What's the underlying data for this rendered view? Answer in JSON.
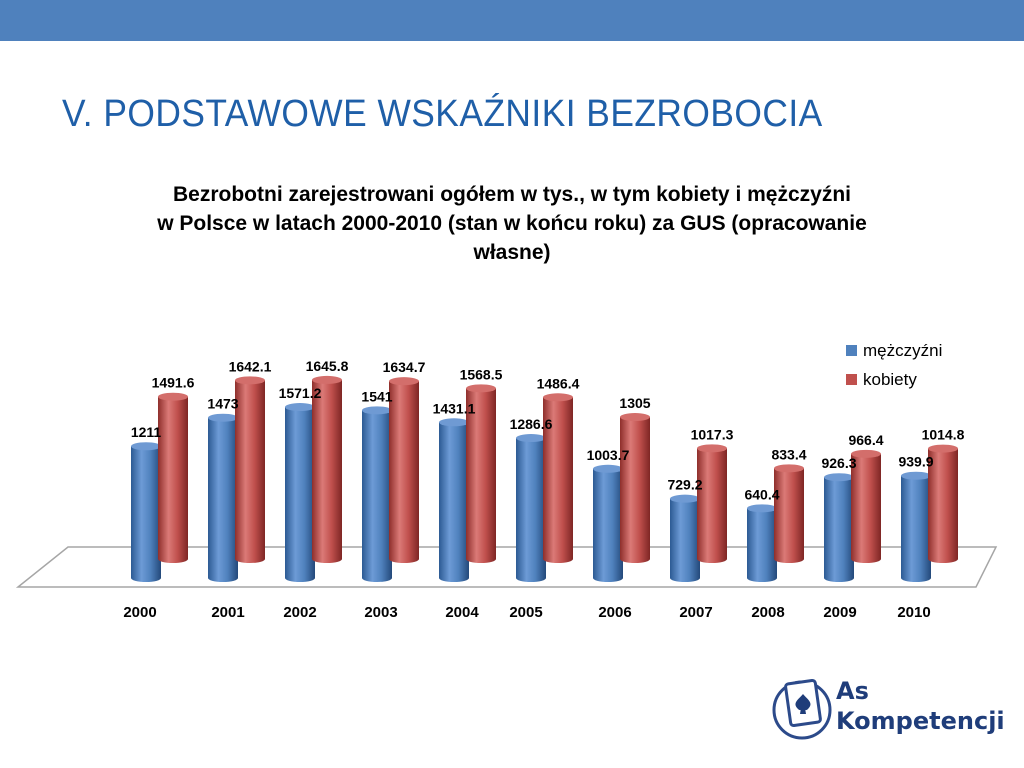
{
  "slide": {
    "title": "V. PODSTAWOWE WSKAŹNIKI BEZROBOCIA",
    "caption_lines": [
      "Bezrobotni zarejestrowani ogółem w tys., w tym kobiety i mężczyźni",
      "w Polsce w latach 2000-2010 (stan w końcu roku) za GUS (opracowanie",
      "własne)"
    ]
  },
  "colors": {
    "band": "#4f81bd",
    "title": "#1f5fa8",
    "men": "#4f81bd",
    "women": "#c0504d"
  },
  "chart_data": {
    "type": "bar",
    "style": "3d-cylinder",
    "categories": [
      "2000",
      "2001",
      "2002",
      "2003",
      "2004",
      "2005",
      "2006",
      "2007",
      "2008",
      "2009",
      "2010"
    ],
    "series": [
      {
        "name": "mężczyźni",
        "color": "#4f81bd",
        "values": [
          1211,
          1473,
          1571.2,
          1541,
          1431.1,
          1286.6,
          1003.7,
          729.2,
          640.4,
          926.3,
          939.9
        ]
      },
      {
        "name": "kobiety",
        "color": "#c0504d",
        "values": [
          1491.6,
          1642.1,
          1645.8,
          1634.7,
          1568.5,
          1486.4,
          1305,
          1017.3,
          833.4,
          966.4,
          1014.8
        ]
      }
    ],
    "data_labels": true,
    "gridlines": false,
    "legend_position": "top-right"
  },
  "logo": {
    "line1": "As",
    "line2": "Kompetencji"
  }
}
